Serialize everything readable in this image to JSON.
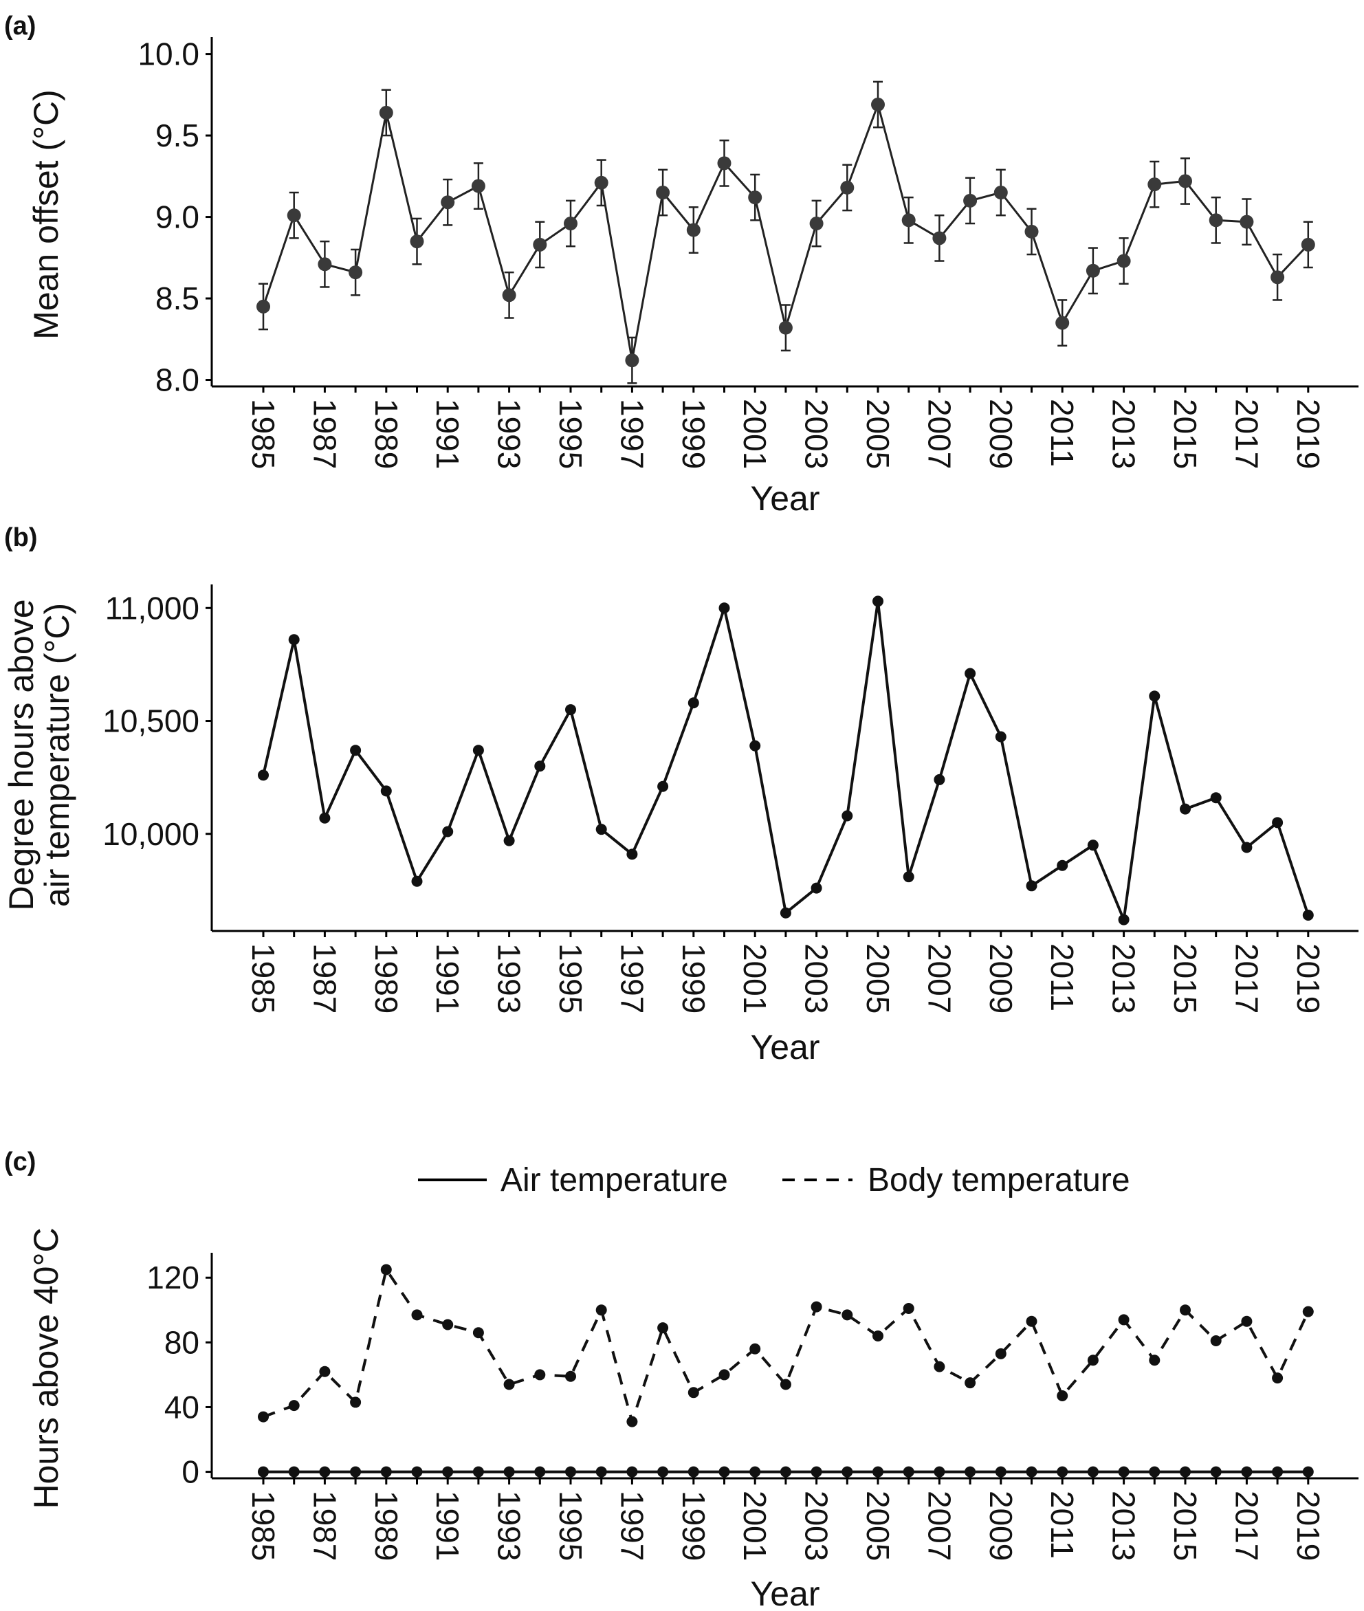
{
  "chart_data": [
    {
      "type": "line",
      "panel_label": "(a)",
      "title": "",
      "xlabel": "Year",
      "ylabel": "Mean offset (°C)",
      "ylim": [
        7.96,
        10.07
      ],
      "y_ticks": [
        "8.0",
        "8.5",
        "9.0",
        "9.5",
        "10.0"
      ],
      "x_tick_labels": [
        "1985",
        "1987",
        "1989",
        "1991",
        "1993",
        "1995",
        "1997",
        "1999",
        "2001",
        "2003",
        "2005",
        "2007",
        "2009",
        "2011",
        "2013",
        "2015",
        "2017",
        "2019"
      ],
      "x": [
        1985,
        1986,
        1987,
        1988,
        1989,
        1990,
        1991,
        1992,
        1993,
        1994,
        1995,
        1996,
        1997,
        1998,
        1999,
        2000,
        2001,
        2002,
        2003,
        2004,
        2005,
        2006,
        2007,
        2008,
        2009,
        2010,
        2011,
        2012,
        2013,
        2014,
        2015,
        2016,
        2017,
        2018,
        2019
      ],
      "series": [
        {
          "name": "Mean offset",
          "values": [
            8.45,
            9.01,
            8.71,
            8.66,
            9.64,
            8.85,
            9.09,
            9.19,
            8.52,
            8.83,
            8.96,
            9.21,
            8.12,
            9.15,
            8.92,
            9.33,
            9.12,
            8.32,
            8.96,
            9.18,
            9.69,
            8.98,
            8.87,
            9.1,
            9.15,
            8.91,
            8.35,
            8.67,
            8.73,
            9.2,
            9.22,
            8.98,
            8.97,
            8.63,
            8.83
          ],
          "error": 0.14,
          "style": "solid"
        }
      ]
    },
    {
      "type": "line",
      "panel_label": "(b)",
      "title": "",
      "xlabel": "Year",
      "ylabel": [
        "Degree hours above",
        "air temperature (°C)"
      ],
      "ylim": [
        9570,
        11080
      ],
      "y_ticks": [
        "10,000",
        "10,500",
        "11,000"
      ],
      "x_tick_labels": [
        "1985",
        "1987",
        "1989",
        "1991",
        "1993",
        "1995",
        "1997",
        "1999",
        "2001",
        "2003",
        "2005",
        "2007",
        "2009",
        "2011",
        "2013",
        "2015",
        "2017",
        "2019"
      ],
      "x": [
        1985,
        1986,
        1987,
        1988,
        1989,
        1990,
        1991,
        1992,
        1993,
        1994,
        1995,
        1996,
        1997,
        1998,
        1999,
        2000,
        2001,
        2002,
        2003,
        2004,
        2005,
        2006,
        2007,
        2008,
        2009,
        2010,
        2011,
        2012,
        2013,
        2014,
        2015,
        2016,
        2017,
        2018,
        2019
      ],
      "series": [
        {
          "name": "Degree hours above air temperature",
          "values": [
            10260,
            10860,
            10070,
            10370,
            10190,
            9790,
            10010,
            10370,
            9970,
            10300,
            10550,
            10020,
            9910,
            10210,
            10580,
            11000,
            10390,
            9650,
            9760,
            10080,
            11030,
            9810,
            10240,
            10710,
            10430,
            9770,
            9860,
            9950,
            9620,
            10610,
            10110,
            10160,
            9940,
            10050,
            9640
          ],
          "style": "solid"
        }
      ]
    },
    {
      "type": "line",
      "panel_label": "(c)",
      "title": "",
      "xlabel": "Year",
      "ylabel": "Hours above 40°C",
      "ylim": [
        -4,
        132
      ],
      "y_ticks": [
        "0",
        "40",
        "80",
        "120"
      ],
      "x_tick_labels": [
        "1985",
        "1987",
        "1989",
        "1991",
        "1993",
        "1995",
        "1997",
        "1999",
        "2001",
        "2003",
        "2005",
        "2007",
        "2009",
        "2011",
        "2013",
        "2015",
        "2017",
        "2019"
      ],
      "x": [
        1985,
        1986,
        1987,
        1988,
        1989,
        1990,
        1991,
        1992,
        1993,
        1994,
        1995,
        1996,
        1997,
        1998,
        1999,
        2000,
        2001,
        2002,
        2003,
        2004,
        2005,
        2006,
        2007,
        2008,
        2009,
        2010,
        2011,
        2012,
        2013,
        2014,
        2015,
        2016,
        2017,
        2018,
        2019
      ],
      "legend": [
        "Air temperature",
        "Body temperature"
      ],
      "legend_position": "top",
      "series": [
        {
          "name": "Air temperature",
          "values": [
            0,
            0,
            0,
            0,
            0,
            0,
            0,
            0,
            0,
            0,
            0,
            0,
            0,
            0,
            0,
            0,
            0,
            0,
            0,
            0,
            0,
            0,
            0,
            0,
            0,
            0,
            0,
            0,
            0,
            0,
            0,
            0,
            0,
            0,
            0
          ],
          "style": "solid"
        },
        {
          "name": "Body temperature",
          "values": [
            34,
            41,
            62,
            43,
            125,
            97,
            91,
            86,
            54,
            60,
            59,
            100,
            31,
            89,
            49,
            60,
            76,
            54,
            102,
            97,
            84,
            101,
            65,
            55,
            73,
            93,
            47,
            69,
            94,
            69,
            100,
            81,
            93,
            58,
            99
          ],
          "style": "dashed"
        }
      ]
    }
  ]
}
